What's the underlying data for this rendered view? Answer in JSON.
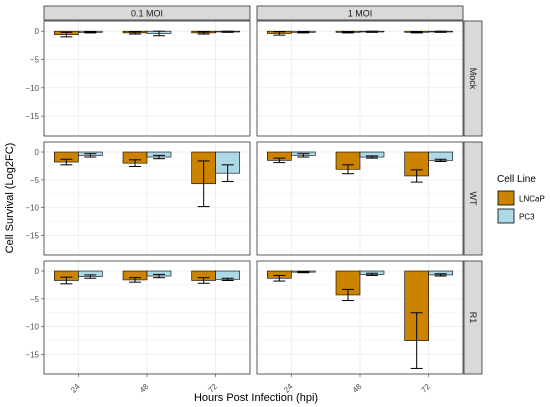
{
  "chart_data": {
    "type": "bar",
    "xlabel": "Hours Post Infection (hpi)",
    "ylabel": "Cell Survival (Log2FC)",
    "ylim": [
      -18.5,
      1.8
    ],
    "y_ticks": [
      0,
      -5,
      -10,
      -15
    ],
    "categories": [
      "24",
      "48",
      "72"
    ],
    "facet_columns": [
      "0.1 MOI",
      "1 MOI"
    ],
    "facet_rows": [
      "Mock",
      "WT",
      "R1"
    ],
    "legend": {
      "title": "Cell Line",
      "position": "right",
      "entries": [
        {
          "name": "LNCaP",
          "color": "#cc8400"
        },
        {
          "name": "PC3",
          "color": "#add8e6"
        }
      ]
    },
    "panels": [
      {
        "row": "Mock",
        "col": "0.1 MOI",
        "series": [
          {
            "name": "LNCaP",
            "values": [
              -0.6,
              -0.3,
              -0.3
            ],
            "errors": [
              0.4,
              0.2,
              0.2
            ]
          },
          {
            "name": "PC3",
            "values": [
              -0.2,
              -0.4,
              -0.1
            ],
            "errors": [
              0.1,
              0.4,
              0.1
            ]
          }
        ]
      },
      {
        "row": "Mock",
        "col": "1 MOI",
        "series": [
          {
            "name": "LNCaP",
            "values": [
              -0.4,
              -0.2,
              -0.2
            ],
            "errors": [
              0.3,
              0.1,
              0.1
            ]
          },
          {
            "name": "PC3",
            "values": [
              -0.2,
              -0.1,
              -0.1
            ],
            "errors": [
              0.1,
              0.1,
              0.1
            ]
          }
        ]
      },
      {
        "row": "WT",
        "col": "0.1 MOI",
        "series": [
          {
            "name": "LNCaP",
            "values": [
              -1.8,
              -2.0,
              -5.7
            ],
            "errors": [
              0.5,
              0.6,
              4.1
            ]
          },
          {
            "name": "PC3",
            "values": [
              -0.6,
              -0.9,
              -3.8
            ],
            "errors": [
              0.3,
              0.3,
              1.5
            ]
          }
        ]
      },
      {
        "row": "WT",
        "col": "1 MOI",
        "series": [
          {
            "name": "LNCaP",
            "values": [
              -1.5,
              -3.1,
              -4.3
            ],
            "errors": [
              0.4,
              0.8,
              1.1
            ]
          },
          {
            "name": "PC3",
            "values": [
              -0.6,
              -0.9,
              -1.5
            ],
            "errors": [
              0.3,
              0.2,
              0.2
            ]
          }
        ]
      },
      {
        "row": "R1",
        "col": "0.1 MOI",
        "series": [
          {
            "name": "LNCaP",
            "values": [
              -1.7,
              -1.6,
              -1.7
            ],
            "errors": [
              0.6,
              0.4,
              0.5
            ]
          },
          {
            "name": "PC3",
            "values": [
              -1.0,
              -0.9,
              -1.5
            ],
            "errors": [
              0.3,
              0.3,
              0.2
            ]
          }
        ]
      },
      {
        "row": "R1",
        "col": "1 MOI",
        "series": [
          {
            "name": "LNCaP",
            "values": [
              -1.3,
              -4.3,
              -12.5
            ],
            "errors": [
              0.5,
              1.0,
              5.0
            ]
          },
          {
            "name": "PC3",
            "values": [
              -0.2,
              -0.6,
              -0.7
            ],
            "errors": [
              0.1,
              0.2,
              0.2
            ]
          }
        ]
      }
    ]
  }
}
